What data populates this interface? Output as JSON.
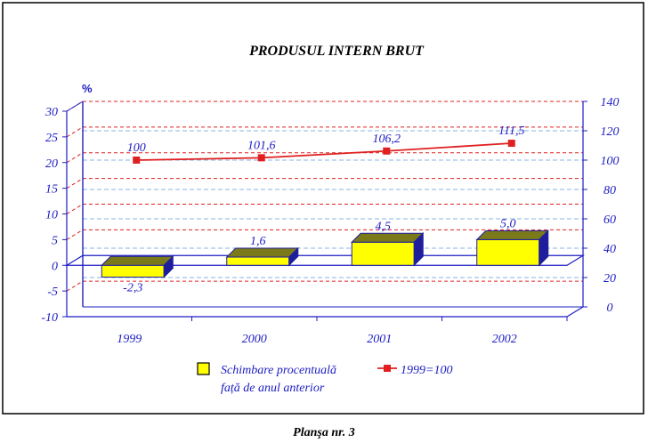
{
  "chart_data": {
    "type": "bar",
    "title": "PRODUSUL INTERN BRUT",
    "y_unit": "%",
    "categories": [
      "1999",
      "2000",
      "2001",
      "2002"
    ],
    "series": [
      {
        "name": "Schimbare procentuală față de anul anterior",
        "name_lines": [
          "Schimbare procentuală",
          "față de anul anterior"
        ],
        "type": "bar",
        "axis": "left",
        "values": [
          -2.3,
          1.6,
          4.5,
          5.0
        ],
        "labels": [
          "-2,3",
          "1,6",
          "4,5",
          "5,0"
        ],
        "color": "#ffff00",
        "top_color": "#7a7a1a",
        "side_color": "#1e1e9c"
      },
      {
        "name": "1999=100",
        "type": "line",
        "axis": "right",
        "values": [
          100,
          101.6,
          106.2,
          111.5
        ],
        "labels": [
          "100",
          "101,6",
          "106,2",
          "111,5"
        ],
        "color": "#e02020"
      }
    ],
    "y_left": {
      "min": -10,
      "max": 30,
      "ticks": [
        "-10",
        "-5",
        "0",
        "5",
        "10",
        "15",
        "20",
        "25",
        "30"
      ]
    },
    "y_right": {
      "min": 0,
      "max": 140,
      "ticks": [
        "0",
        "20",
        "40",
        "60",
        "80",
        "100",
        "120",
        "140"
      ]
    },
    "grid": true,
    "legend_position": "bottom"
  },
  "caption": "Planşa nr. 3",
  "colors": {
    "axis": "#1c1cc4",
    "grid_red": "#e02020",
    "grid_blue": "#8ab4e0",
    "frame": "#000000"
  }
}
